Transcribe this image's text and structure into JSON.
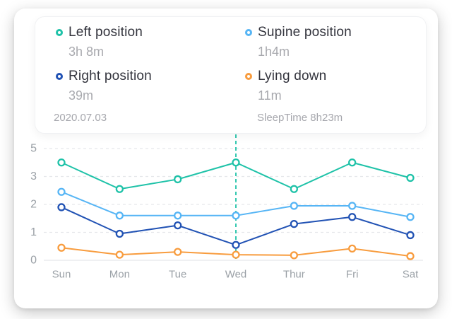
{
  "tooltip": {
    "date": "2020.07.03",
    "sleep_time": "SleepTime 8h23m",
    "items": [
      {
        "label": "Left position",
        "value": "3h 8m",
        "color": "#1ec2a8"
      },
      {
        "label": "Supine position",
        "value": "1h4m",
        "color": "#56b5f5"
      },
      {
        "label": "Right position",
        "value": "39m",
        "color": "#2152b4"
      },
      {
        "label": "Lying down",
        "value": "11m",
        "color": "#f89c3e"
      }
    ]
  },
  "chart_data": {
    "type": "line",
    "x": [
      "Sun",
      "Mon",
      "Tue",
      "Wed",
      "Thur",
      "Fri",
      "Sat"
    ],
    "y_ticks": [
      0,
      1,
      2,
      3,
      5
    ],
    "ylim": [
      0,
      5
    ],
    "grid": "dashed horizontal gridlines, solid baseline at 0",
    "legend_position": "tooltip card above chart",
    "note": "y-axis ticks 0,1,2,3,5 are equally spaced (non-linear above 3)",
    "highlight_x": "Wed",
    "highlight_color": "#1ec2a8",
    "series": [
      {
        "name": "Left position",
        "color": "#1ec2a8",
        "values": [
          4,
          2.55,
          2.9,
          4,
          2.55,
          4,
          2.95
        ]
      },
      {
        "name": "Supine position",
        "color": "#56b5f5",
        "values": [
          2.45,
          1.6,
          1.6,
          1.6,
          1.95,
          1.95,
          1.55
        ]
      },
      {
        "name": "Right position",
        "color": "#2152b4",
        "values": [
          1.9,
          0.95,
          1.25,
          0.55,
          1.3,
          1.55,
          0.9
        ]
      },
      {
        "name": "Lying down",
        "color": "#f89c3e",
        "values": [
          0.45,
          0.2,
          0.3,
          0.2,
          0.18,
          0.42,
          0.15
        ]
      }
    ]
  }
}
